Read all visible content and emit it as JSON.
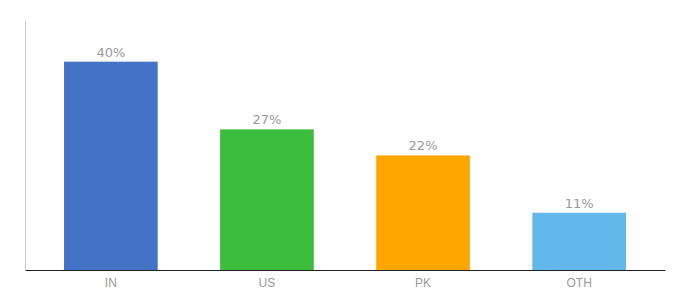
{
  "chart_data": {
    "type": "bar",
    "categories": [
      "IN",
      "US",
      "PK",
      "OTH"
    ],
    "values": [
      40,
      27,
      22,
      11
    ],
    "value_labels": [
      "40%",
      "27%",
      "22%",
      "11%"
    ],
    "colors": [
      "#4472C4",
      "#3DBD3D",
      "#FFA500",
      "#62B8EA"
    ],
    "ylim": [
      0,
      48
    ],
    "data_labels": true,
    "tick_labels": "x",
    "grid": false
  }
}
